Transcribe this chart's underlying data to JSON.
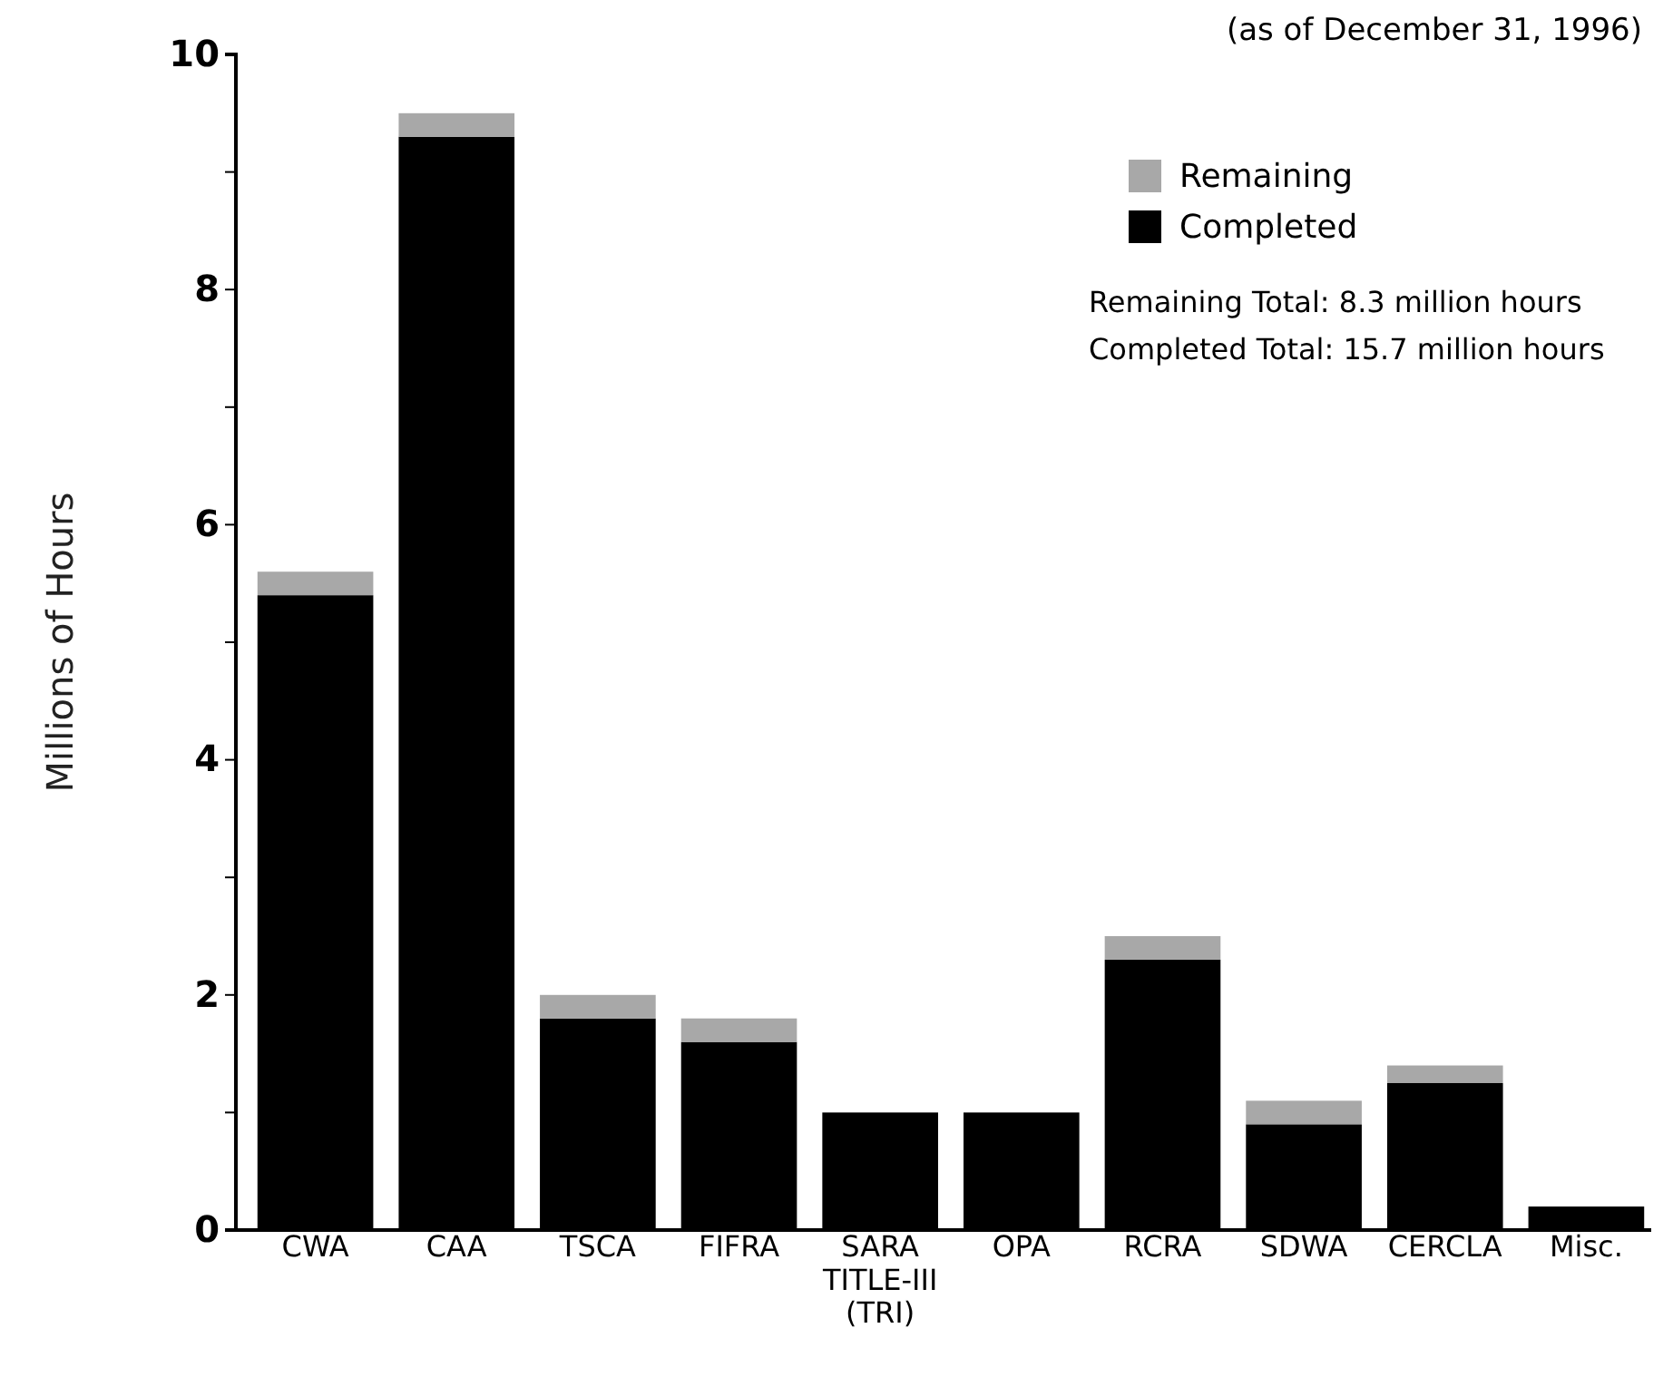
{
  "chart_data": {
    "type": "bar",
    "stacked": true,
    "subtitle": "(as of December 31, 1996)",
    "ylabel": "Millions of Hours",
    "categories": [
      "CWA",
      "CAA",
      "TSCA",
      "FIFRA",
      "SARA TITLE-III (TRI)",
      "OPA",
      "RCRA",
      "SDWA",
      "CERCLA",
      "Misc."
    ],
    "series": [
      {
        "name": "Completed",
        "color": "#000000",
        "values": [
          5.4,
          9.3,
          1.8,
          1.6,
          1.0,
          1.0,
          2.3,
          0.9,
          1.25,
          0.2
        ]
      },
      {
        "name": "Remaining",
        "color": "#a8a8a8",
        "values": [
          0.2,
          0.2,
          0.2,
          0.2,
          0,
          0,
          0.2,
          0.2,
          0.15,
          0
        ]
      }
    ],
    "ylim": [
      0,
      10
    ],
    "yticks": [
      0,
      {
        "value": 1,
        "label": null
      },
      2,
      {
        "value": 3,
        "label": null
      },
      4,
      {
        "value": 5,
        "label": null
      },
      6,
      {
        "value": 7,
        "label": null
      },
      8,
      {
        "value": 9,
        "label": null
      },
      10
    ],
    "legend": "top right",
    "annotations": [
      "Remaining Total: 8.3 million hours",
      "Completed Total: 15.7 million hours"
    ]
  }
}
